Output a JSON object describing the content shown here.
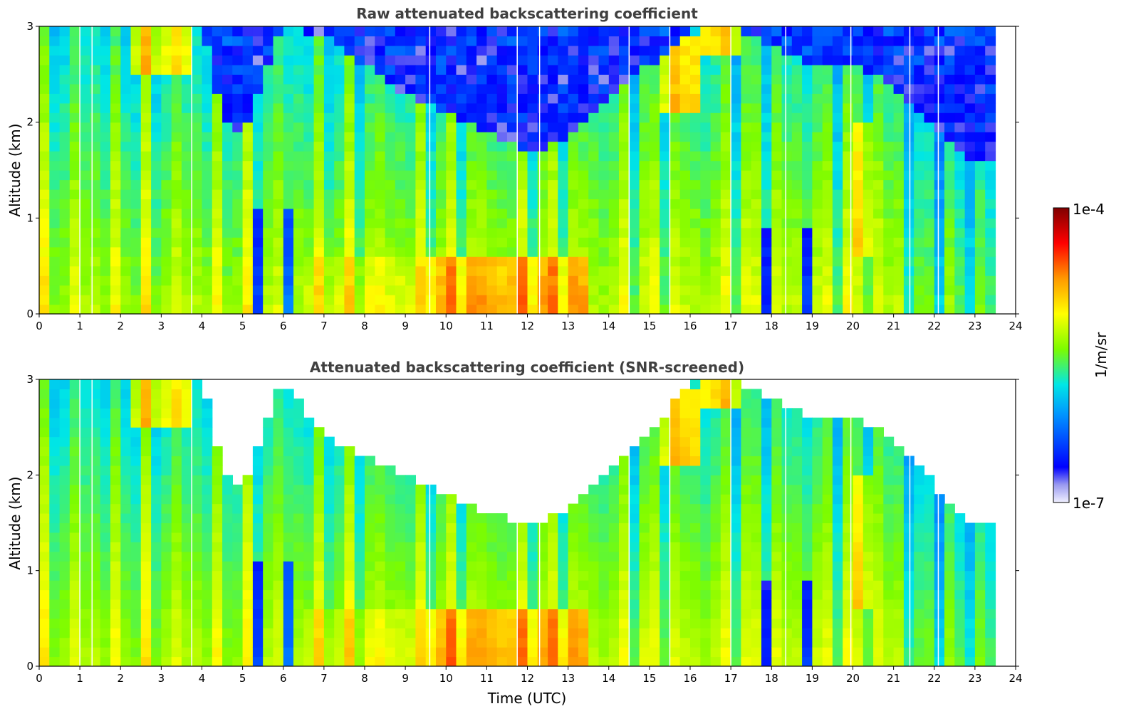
{
  "chart_data": [
    {
      "type": "heatmap",
      "title": "Raw attenuated backscattering coefficient",
      "xlabel": "",
      "ylabel": "Altitude (km)",
      "xlim": [
        0,
        24
      ],
      "ylim": [
        0,
        3
      ],
      "xticks": [
        "0",
        "1",
        "2",
        "3",
        "4",
        "5",
        "6",
        "7",
        "8",
        "9",
        "10",
        "11",
        "12",
        "13",
        "14",
        "15",
        "16",
        "17",
        "18",
        "19",
        "20",
        "21",
        "22",
        "23",
        "24"
      ],
      "yticks": [
        "0",
        "1",
        "2",
        "3"
      ],
      "data_end_hour": 23.5,
      "cloud_top_km_by_hour": {
        "hour": [
          0,
          1,
          2,
          3,
          4,
          4.5,
          5,
          6,
          7,
          8,
          9,
          10,
          11,
          12,
          13,
          14,
          15,
          16,
          17,
          18,
          19,
          20,
          21,
          22,
          23
        ],
        "top": [
          3.0,
          3.0,
          3.0,
          3.0,
          3.0,
          2.1,
          1.9,
          3.0,
          2.9,
          2.6,
          2.3,
          2.1,
          1.9,
          1.7,
          1.8,
          2.3,
          2.6,
          3.0,
          3.0,
          2.8,
          2.6,
          2.6,
          2.4,
          1.9,
          1.6
        ]
      },
      "screening": "none"
    },
    {
      "type": "heatmap",
      "title": "Attenuated backscattering coefficient (SNR-screened)",
      "xlabel": "Time (UTC)",
      "ylabel": "Altitude (km)",
      "xlim": [
        0,
        24
      ],
      "ylim": [
        0,
        3
      ],
      "xticks": [
        "0",
        "1",
        "2",
        "3",
        "4",
        "5",
        "6",
        "7",
        "8",
        "9",
        "10",
        "11",
        "12",
        "13",
        "14",
        "15",
        "16",
        "17",
        "18",
        "19",
        "20",
        "21",
        "22",
        "23",
        "24"
      ],
      "yticks": [
        "0",
        "1",
        "2",
        "3"
      ],
      "data_end_hour": 23.5,
      "cloud_top_km_by_hour": {
        "hour": [
          0,
          1,
          2,
          3,
          4,
          4.5,
          5,
          6,
          7,
          8,
          9,
          10,
          11,
          12,
          13,
          14,
          15,
          16,
          17,
          18,
          19,
          20,
          21,
          22,
          23
        ],
        "top": [
          3.0,
          3.0,
          3.0,
          3.0,
          3.0,
          2.1,
          1.9,
          3.0,
          2.4,
          2.2,
          2.0,
          1.8,
          1.6,
          1.5,
          1.6,
          2.1,
          2.4,
          3.0,
          3.0,
          2.8,
          2.6,
          2.6,
          2.4,
          1.9,
          1.5
        ]
      },
      "screening": "snr"
    }
  ],
  "colorbar": {
    "label": "1/m/sr",
    "min_label": "1e-7",
    "max_label": "1e-4",
    "colors": [
      "#e6e6fa",
      "#0000ff",
      "#00ffff",
      "#ffff00",
      "#ff8c00",
      "#ff0000",
      "#800000"
    ]
  }
}
